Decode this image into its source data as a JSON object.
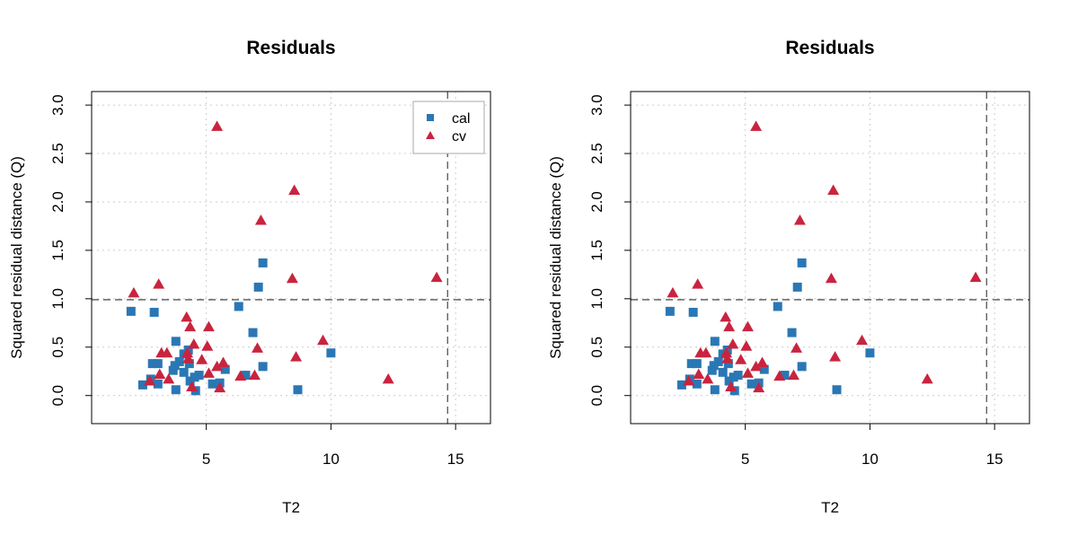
{
  "colors": {
    "cal": "#2a77b5",
    "cv": "#c9243f",
    "threshold": "#555555",
    "grid": "#cccccc"
  },
  "chart_data": [
    {
      "type": "scatter",
      "title": "Residuals",
      "xlabel": "T2",
      "ylabel": "Squared residual distance (Q)",
      "xlim": [
        0.4,
        16.4
      ],
      "ylim": [
        -0.29,
        3.14
      ],
      "xticks": [
        5,
        10,
        15
      ],
      "yticks": [
        0.0,
        0.5,
        1.0,
        1.5,
        2.0,
        2.5,
        3.0
      ],
      "grid": true,
      "legend": "top-right",
      "thresholds": {
        "q": 0.99,
        "t2": 14.68
      },
      "series": [
        {
          "name": "cal",
          "marker": "square",
          "x": [
            1.98,
            2.91,
            6.3,
            6.87,
            3.78,
            2.84,
            3.06,
            3.92,
            4.1,
            4.28,
            3.74,
            3.67,
            4.1,
            4.32,
            2.45,
            3.06,
            2.77,
            3.78,
            4.35,
            4.53,
            4.71,
            4.57,
            5.25,
            5.54,
            5.76,
            6.58,
            7.27,
            7.09,
            10.0,
            7.27,
            8.67
          ],
          "y": [
            0.87,
            0.86,
            0.92,
            0.65,
            0.56,
            0.33,
            0.33,
            0.35,
            0.43,
            0.47,
            0.31,
            0.26,
            0.24,
            0.33,
            0.11,
            0.12,
            0.17,
            0.06,
            0.15,
            0.19,
            0.21,
            0.05,
            0.12,
            0.13,
            0.27,
            0.21,
            1.37,
            1.12,
            0.44,
            0.3,
            0.06
          ]
        },
        {
          "name": "cv",
          "marker": "triangle",
          "x": [
            5.43,
            8.53,
            7.19,
            8.45,
            14.24,
            9.68,
            7.05,
            8.6,
            12.3,
            6.37,
            6.94,
            2.09,
            3.09,
            4.21,
            4.35,
            5.1,
            4.5,
            5.04,
            3.2,
            3.42,
            4.24,
            4.28,
            4.82,
            5.68,
            5.43,
            3.13,
            3.49,
            2.73,
            5.1,
            4.42,
            5.54
          ],
          "y": [
            2.78,
            2.12,
            1.81,
            1.21,
            1.22,
            0.57,
            0.49,
            0.4,
            0.17,
            0.2,
            0.21,
            1.06,
            1.15,
            0.81,
            0.71,
            0.71,
            0.53,
            0.51,
            0.44,
            0.44,
            0.44,
            0.38,
            0.37,
            0.34,
            0.3,
            0.22,
            0.17,
            0.15,
            0.23,
            0.09,
            0.08
          ]
        }
      ]
    },
    {
      "type": "scatter",
      "title": "Residuals",
      "xlabel": "T2",
      "ylabel": "Squared residual distance (Q)",
      "xlim": [
        0.4,
        16.4
      ],
      "ylim": [
        -0.29,
        3.14
      ],
      "xticks": [
        5,
        10,
        15
      ],
      "yticks": [
        0.0,
        0.5,
        1.0,
        1.5,
        2.0,
        2.5,
        3.0
      ],
      "grid": true,
      "legend": "none",
      "thresholds": {
        "q": 0.99,
        "t2": 14.68
      },
      "series": [
        {
          "name": "cal",
          "marker": "square",
          "x": [
            1.98,
            2.91,
            6.3,
            6.87,
            3.78,
            2.84,
            3.06,
            3.92,
            4.1,
            4.28,
            3.74,
            3.67,
            4.1,
            4.32,
            2.45,
            3.06,
            2.77,
            3.78,
            4.35,
            4.53,
            4.71,
            4.57,
            5.25,
            5.54,
            5.76,
            6.58,
            7.27,
            7.09,
            10.0,
            7.27,
            8.67
          ],
          "y": [
            0.87,
            0.86,
            0.92,
            0.65,
            0.56,
            0.33,
            0.33,
            0.35,
            0.43,
            0.47,
            0.31,
            0.26,
            0.24,
            0.33,
            0.11,
            0.12,
            0.17,
            0.06,
            0.15,
            0.19,
            0.21,
            0.05,
            0.12,
            0.13,
            0.27,
            0.21,
            1.37,
            1.12,
            0.44,
            0.3,
            0.06
          ]
        },
        {
          "name": "cv",
          "marker": "triangle",
          "x": [
            5.43,
            8.53,
            7.19,
            8.45,
            14.24,
            9.68,
            7.05,
            8.6,
            12.3,
            6.37,
            6.94,
            2.09,
            3.09,
            4.21,
            4.35,
            5.1,
            4.5,
            5.04,
            3.2,
            3.42,
            4.24,
            4.28,
            4.82,
            5.68,
            5.43,
            3.13,
            3.49,
            2.73,
            5.1,
            4.42,
            5.54
          ],
          "y": [
            2.78,
            2.12,
            1.81,
            1.21,
            1.22,
            0.57,
            0.49,
            0.4,
            0.17,
            0.2,
            0.21,
            1.06,
            1.15,
            0.81,
            0.71,
            0.71,
            0.53,
            0.51,
            0.44,
            0.44,
            0.44,
            0.38,
            0.37,
            0.34,
            0.3,
            0.22,
            0.17,
            0.15,
            0.23,
            0.09,
            0.08
          ]
        }
      ]
    }
  ]
}
